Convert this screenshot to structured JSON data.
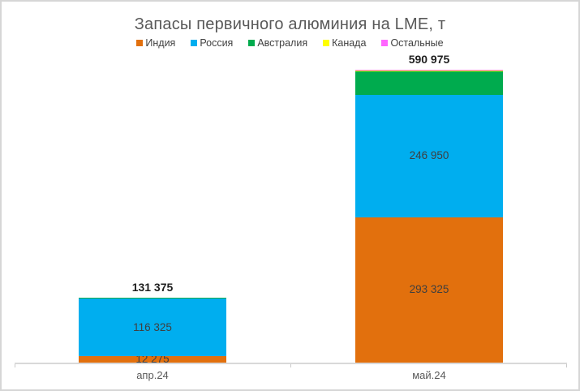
{
  "chart_data": {
    "type": "bar",
    "subtype": "stacked",
    "title": "Запасы первичного алюминия на LME, т",
    "unit": "т",
    "categories": [
      "апр.24",
      "май.24"
    ],
    "series": [
      {
        "name": "Индия",
        "color": "#E2700D",
        "values": [
          12275,
          293325
        ],
        "data_labels": [
          "12 275",
          "293 325"
        ],
        "show_labels": true,
        "estimated": false
      },
      {
        "name": "Россия",
        "color": "#00AEEF",
        "values": [
          116325,
          246950
        ],
        "data_labels": [
          "116 325",
          "246 950"
        ],
        "show_labels": true,
        "estimated": false
      },
      {
        "name": "Австралия",
        "color": "#00AB4E",
        "values": [
          2545,
          46500
        ],
        "data_labels": null,
        "show_labels": false,
        "estimated": true
      },
      {
        "name": "Канада",
        "color": "#FFFF00",
        "values": [
          115,
          2100
        ],
        "data_labels": null,
        "show_labels": false,
        "estimated": true
      },
      {
        "name": "Остальные",
        "color": "#FF66FF",
        "values": [
          115,
          2100
        ],
        "data_labels": null,
        "show_labels": false,
        "estimated": true
      }
    ],
    "totals": {
      "values": [
        131375,
        590975
      ],
      "labels": [
        "131 375",
        "590 975"
      ]
    },
    "legend": {
      "position": "top",
      "items": [
        "Индия",
        "Россия",
        "Австралия",
        "Канада",
        "Остальные"
      ]
    },
    "grid": false,
    "y_axis_visible": false,
    "stack_order_bottom_to_top": [
      "Индия",
      "Россия",
      "Австралия",
      "Канада",
      "Остальные"
    ],
    "note": "Values for Австралия, Канада, Остальные are not labeled in the chart; they are estimated from segment pixel heights."
  },
  "colors": {
    "title_text": "#595959",
    "legend_text": "#404040",
    "data_label_text": "#3F3F3F",
    "total_label_text": "#1F1F1F",
    "axis_line": "#D9D9D9",
    "category_text": "#595959",
    "frame_border": "#D6D6D6",
    "background": "#FFFFFF"
  }
}
